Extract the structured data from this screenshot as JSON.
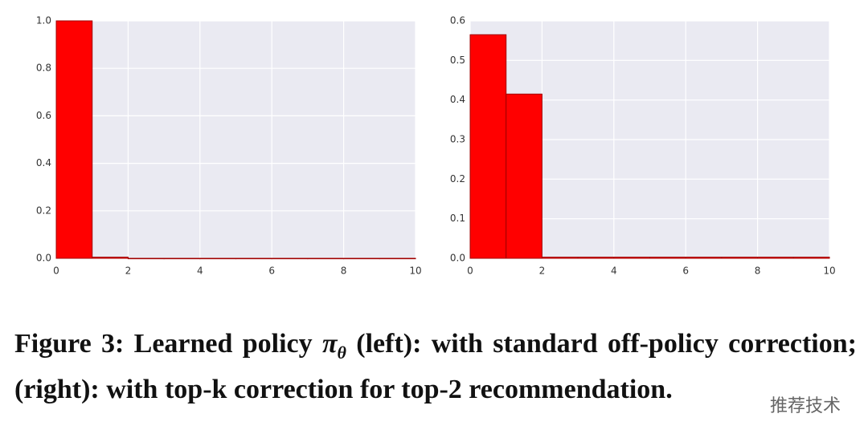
{
  "chart_data": [
    {
      "type": "histogram",
      "bins": [
        0,
        1,
        2,
        3,
        4,
        5,
        6,
        7,
        8,
        9,
        10
      ],
      "values": [
        1.0,
        0.005,
        0,
        0,
        0,
        0,
        0,
        0,
        0,
        0
      ],
      "color": "#ff0000",
      "edgecolor": "#a00000",
      "background": "#eaeaf2",
      "grid": true,
      "xlim": [
        0,
        10
      ],
      "xticks": [
        0,
        2,
        4,
        6,
        8,
        10
      ],
      "ylim": [
        0,
        1.0
      ],
      "yticks": [
        {
          "value": 0,
          "label": "0.0"
        },
        0.2,
        0.4,
        0.6,
        0.8,
        {
          "value": 1.0,
          "label": "1.0"
        }
      ]
    },
    {
      "type": "histogram",
      "bins": [
        0,
        1,
        2,
        3,
        4,
        5,
        6,
        7,
        8,
        9,
        10
      ],
      "values": [
        0.565,
        0.415,
        0.003,
        0.003,
        0.003,
        0.003,
        0.003,
        0.003,
        0.003,
        0.003
      ],
      "color": "#ff0000",
      "edgecolor": "#a00000",
      "background": "#eaeaf2",
      "grid": true,
      "xlim": [
        0,
        10
      ],
      "xticks": [
        0,
        2,
        4,
        6,
        8,
        10
      ],
      "ylim": [
        0,
        0.6
      ],
      "yticks": [
        {
          "value": 0,
          "label": "0.0"
        },
        0.1,
        0.2,
        0.3,
        0.4,
        0.5,
        0.6
      ]
    }
  ],
  "caption": {
    "prefix": "Figure 3: Learned policy ",
    "symbol": "π",
    "subscript": "θ",
    "rest": " (left): with standard off-policy correction; (right): with top-k correction for top-2 recommendation."
  },
  "watermark": "推荐技术"
}
